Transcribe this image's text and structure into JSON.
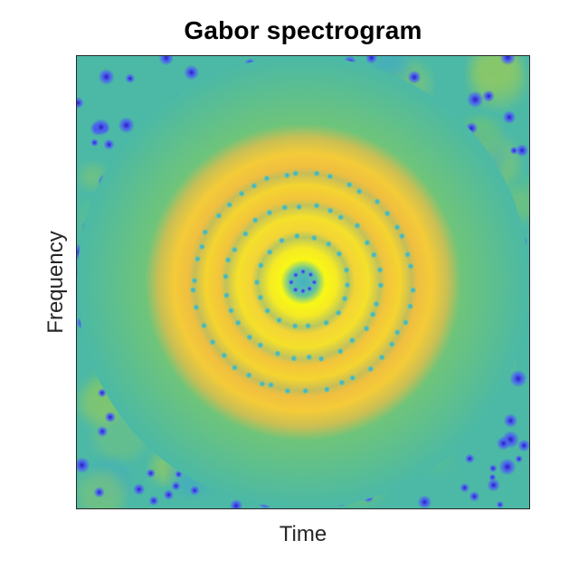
{
  "chart_data": {
    "type": "heatmap",
    "title": "Gabor spectrogram",
    "xlabel": "Time",
    "ylabel": "Frequency",
    "grid": false,
    "legend": "none",
    "colormap": [
      "#3e26a8",
      "#4a5ef0",
      "#2a9fe0",
      "#36b8b0",
      "#7ec864",
      "#d8bd3e",
      "#f2c43a",
      "#f9f716"
    ],
    "pattern": {
      "shape": "concentric rings",
      "center": [
        0.5,
        0.5
      ],
      "rings": [
        {
          "name": "inner-bright-ring",
          "radius": 0.065,
          "intensity": 1.0
        },
        {
          "name": "ring-2",
          "radius": 0.155,
          "intensity": 0.95
        },
        {
          "name": "ring-3",
          "radius": 0.245,
          "intensity": 0.9
        },
        {
          "name": "outer-ring",
          "radius": 0.325,
          "intensity": 0.85
        }
      ],
      "background_level": 0.45,
      "zero_points": "scattered dark-blue dots in background and along gaps between rings"
    }
  }
}
